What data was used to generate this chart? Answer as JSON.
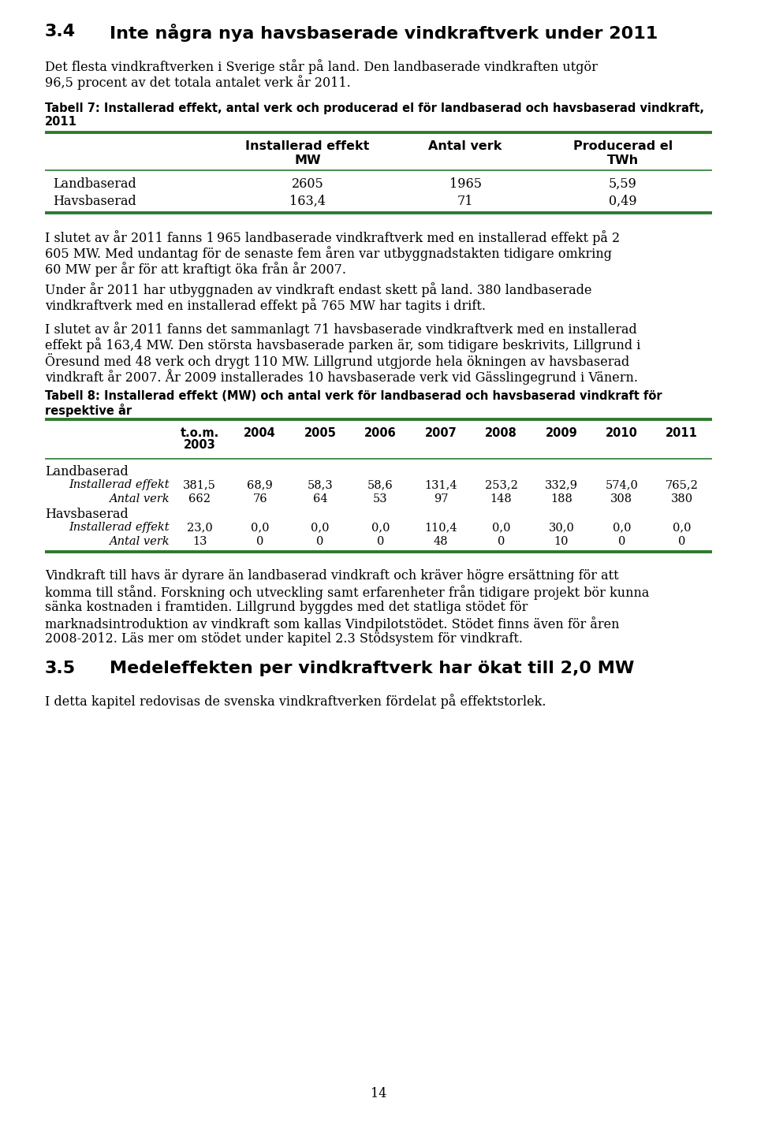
{
  "background_color": "#ffffff",
  "page_number": "14",
  "green_color": "#2d7a2d",
  "text_color": "#000000",
  "serif_font": "DejaVu Serif",
  "sans_font": "DejaVu Sans",
  "sec1_num": "3.4",
  "sec1_title": "Inte några nya havsbaserade vindkraftverk under 2011",
  "para1_lines": [
    "Det flesta vindkraftverken i Sverige står på land. Den landbaserade vindkraften utgör",
    "96,5 procent av det totala antalet verk år 2011."
  ],
  "t7_cap_lines": [
    "Tabell 7: Installerad effekt, antal verk och producerad el för landbaserad och havsbaserad vindkraft,",
    "2011"
  ],
  "t7_h1": "Installerad effekt",
  "t7_h1b": "MW",
  "t7_h2": "Antal verk",
  "t7_h3": "Producerad el",
  "t7_h3b": "TWh",
  "t7_r1": [
    "Landbaserad",
    "2605",
    "1965",
    "5,59"
  ],
  "t7_r2": [
    "Havsbaserad",
    "163,4",
    "71",
    "0,49"
  ],
  "para2_lines": [
    "I slutet av år 2011 fanns 1 965 landbaserade vindkraftverk med en installerad effekt på 2",
    "605 MW. Med undantag för de senaste fem åren var utbyggnadstakten tidigare omkring",
    "60 MW per år för att kraftigt öka från år 2007."
  ],
  "para3_lines": [
    "Under år 2011 har utbyggnaden av vindkraft endast skett på land. 380 landbaserade",
    "vindkraftverk med en installerad effekt på 765 MW har tagits i drift."
  ],
  "para4_lines": [
    "I slutet av år 2011 fanns det sammanlagt 71 havsbaserade vindkraftverk med en installerad",
    "effekt på 163,4 MW. Den största havsbaserade parken är, som tidigare beskrivits, Lillgrund i",
    "Öresund med 48 verk och drygt 110 MW. Lillgrund utgjorde hela ökningen av havsbaserad",
    "vindkraft år 2007. År 2009 installerades 10 havsbaserade verk vid Gässlingegrund i Vänern."
  ],
  "t8_cap_lines": [
    "Tabell 8: Installerad effekt (MW) och antal verk för landbaserad och havsbaserad vindkraft för",
    "respektive år"
  ],
  "t8_col_h": [
    "t.o.m.\n2003",
    "2004",
    "2005",
    "2006",
    "2007",
    "2008",
    "2009",
    "2010",
    "2011"
  ],
  "t8_s1": "Landbaserad",
  "t8_r1l": "Installerad effekt",
  "t8_r1v": [
    "381,5",
    "68,9",
    "58,3",
    "58,6",
    "131,4",
    "253,2",
    "332,9",
    "574,0",
    "765,2"
  ],
  "t8_r2l": "Antal verk",
  "t8_r2v": [
    "662",
    "76",
    "64",
    "53",
    "97",
    "148",
    "188",
    "308",
    "380"
  ],
  "t8_s2": "Havsbaserad",
  "t8_r3l": "Installerad effekt",
  "t8_r3v": [
    "23,0",
    "0,0",
    "0,0",
    "0,0",
    "110,4",
    "0,0",
    "30,0",
    "0,0",
    "0,0"
  ],
  "t8_r4l": "Antal verk",
  "t8_r4v": [
    "13",
    "0",
    "0",
    "0",
    "48",
    "0",
    "10",
    "0",
    "0"
  ],
  "para5_lines": [
    "Vindkraft till havs är dyrare än landbaserad vindkraft och kräver högre ersättning för att",
    "komma till stånd. Forskning och utveckling samt erfarenheter från tidigare projekt bör kunna",
    "sänka kostnaden i framtiden. Lillgrund byggdes med det statliga stödet för",
    "marknadsintroduktion av vindkraft som kallas Vindpilotstödet. Stödet finns även för åren",
    "2008-2012. Läs mer om stödet under kapitel 2.3 Stödsystem för vindkraft."
  ],
  "sec2_num": "3.5",
  "sec2_title": "Medeleffekten per vindkraftverk har ökat till 2,0 MW",
  "para6": "I detta kapitel redovisas de svenska vindkraftverken fördelat på effektstorlek."
}
